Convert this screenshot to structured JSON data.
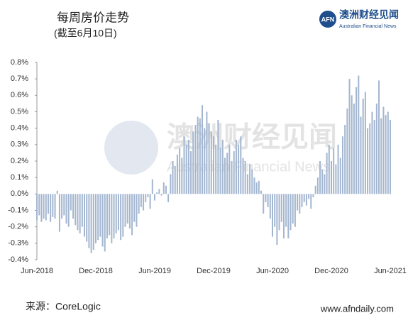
{
  "chart_data": {
    "type": "bar",
    "title": "每周房价走势",
    "subtitle": "(截至6月10日)",
    "brand": "澳洲财经见闻",
    "brand_subtitle": "Australian Financial News",
    "source": "来源：CoreLogic",
    "website": "www.afndaily.com",
    "color": "#a3b6d0",
    "ylim": [
      -0.4,
      0.8
    ],
    "yticks": [
      {
        "value": -0.4,
        "label": "-0.4%"
      },
      {
        "value": -0.3,
        "label": "-0.3%"
      },
      {
        "value": -0.2,
        "label": "-0.2%"
      },
      {
        "value": -0.1,
        "label": "-0.1%"
      },
      {
        "value": 0,
        "label": "0.0%"
      },
      {
        "value": 0.1,
        "label": "0.1%"
      },
      {
        "value": 0.2,
        "label": "0.2%"
      },
      {
        "value": 0.3,
        "label": "0.3%"
      },
      {
        "value": 0.4,
        "label": "0.4%"
      },
      {
        "value": 0.5,
        "label": "0.5%"
      },
      {
        "value": 0.6,
        "label": "0.6%"
      },
      {
        "value": 0.7,
        "label": "0.7%"
      },
      {
        "value": 0.8,
        "label": "0.8%"
      }
    ],
    "categories": [
      "Jun-2018",
      null,
      null,
      null,
      null,
      null,
      null,
      null,
      null,
      null,
      null,
      null,
      null,
      null,
      null,
      null,
      null,
      null,
      null,
      null,
      null,
      null,
      null,
      null,
      null,
      null,
      "Dec-2018",
      null,
      null,
      null,
      null,
      null,
      null,
      null,
      null,
      null,
      null,
      null,
      null,
      null,
      null,
      null,
      null,
      null,
      null,
      null,
      null,
      null,
      null,
      null,
      null,
      null,
      "Jun-2019",
      null,
      null,
      null,
      null,
      null,
      null,
      null,
      null,
      null,
      null,
      null,
      null,
      null,
      null,
      null,
      null,
      null,
      null,
      null,
      null,
      null,
      null,
      null,
      null,
      null,
      "Dec-2019",
      null,
      null,
      null,
      null,
      null,
      null,
      null,
      null,
      null,
      null,
      null,
      null,
      null,
      null,
      null,
      null,
      null,
      null,
      null,
      null,
      null,
      null,
      null,
      null,
      null,
      "Jun-2020",
      null,
      null,
      null,
      null,
      null,
      null,
      null,
      null,
      null,
      null,
      null,
      null,
      null,
      null,
      null,
      null,
      null,
      null,
      null,
      null,
      null,
      null,
      null,
      null,
      null,
      "Dec-2020",
      null,
      null,
      null,
      null,
      null,
      null,
      null,
      null,
      null,
      null,
      null,
      null,
      null,
      null,
      null,
      null,
      null,
      null,
      null,
      null,
      null,
      null,
      null,
      null,
      null,
      "Jun-2021"
    ],
    "values": [
      -0.16,
      -0.13,
      -0.17,
      -0.15,
      -0.16,
      -0.12,
      -0.17,
      -0.14,
      -0.15,
      0.02,
      -0.23,
      -0.15,
      -0.13,
      -0.18,
      -0.2,
      -0.1,
      -0.15,
      -0.19,
      -0.22,
      -0.24,
      -0.2,
      -0.26,
      -0.29,
      -0.33,
      -0.36,
      -0.34,
      -0.3,
      -0.28,
      -0.26,
      -0.32,
      -0.35,
      -0.27,
      -0.25,
      -0.3,
      -0.27,
      -0.24,
      -0.22,
      -0.28,
      -0.26,
      -0.2,
      -0.18,
      -0.21,
      -0.25,
      -0.17,
      -0.2,
      -0.12,
      -0.08,
      -0.1,
      -0.05,
      -0.02,
      -0.09,
      0.09,
      -0.04,
      0.01,
      0.03,
      -0.01,
      0.07,
      0.05,
      -0.05,
      0.12,
      0.2,
      0.17,
      0.24,
      0.28,
      0.22,
      0.35,
      0.3,
      0.33,
      0.26,
      0.38,
      0.42,
      0.47,
      0.46,
      0.54,
      0.4,
      0.5,
      0.43,
      0.38,
      0.35,
      0.3,
      0.45,
      0.28,
      0.33,
      0.22,
      0.25,
      0.3,
      0.2,
      0.26,
      0.33,
      0.3,
      0.35,
      0.22,
      0.2,
      0.12,
      0.18,
      0.15,
      0.1,
      0.07,
      0.08,
      0.02,
      -0.12,
      -0.05,
      -0.08,
      -0.15,
      -0.26,
      -0.2,
      -0.31,
      -0.22,
      -0.17,
      -0.27,
      -0.2,
      -0.27,
      -0.22,
      -0.18,
      -0.2,
      -0.1,
      -0.12,
      -0.08,
      -0.05,
      -0.07,
      -0.03,
      -0.09,
      -0.02,
      0.05,
      0.1,
      0.2,
      0.15,
      0.12,
      0.25,
      0.3,
      0.2,
      0.28,
      0.18,
      0.3,
      0.22,
      0.35,
      0.42,
      0.52,
      0.7,
      0.6,
      0.55,
      0.65,
      0.72,
      0.47,
      0.58,
      0.62,
      0.4,
      0.43,
      0.5,
      0.45,
      0.55,
      0.69,
      0.46,
      0.53,
      0.48,
      0.5,
      0.45
    ]
  }
}
